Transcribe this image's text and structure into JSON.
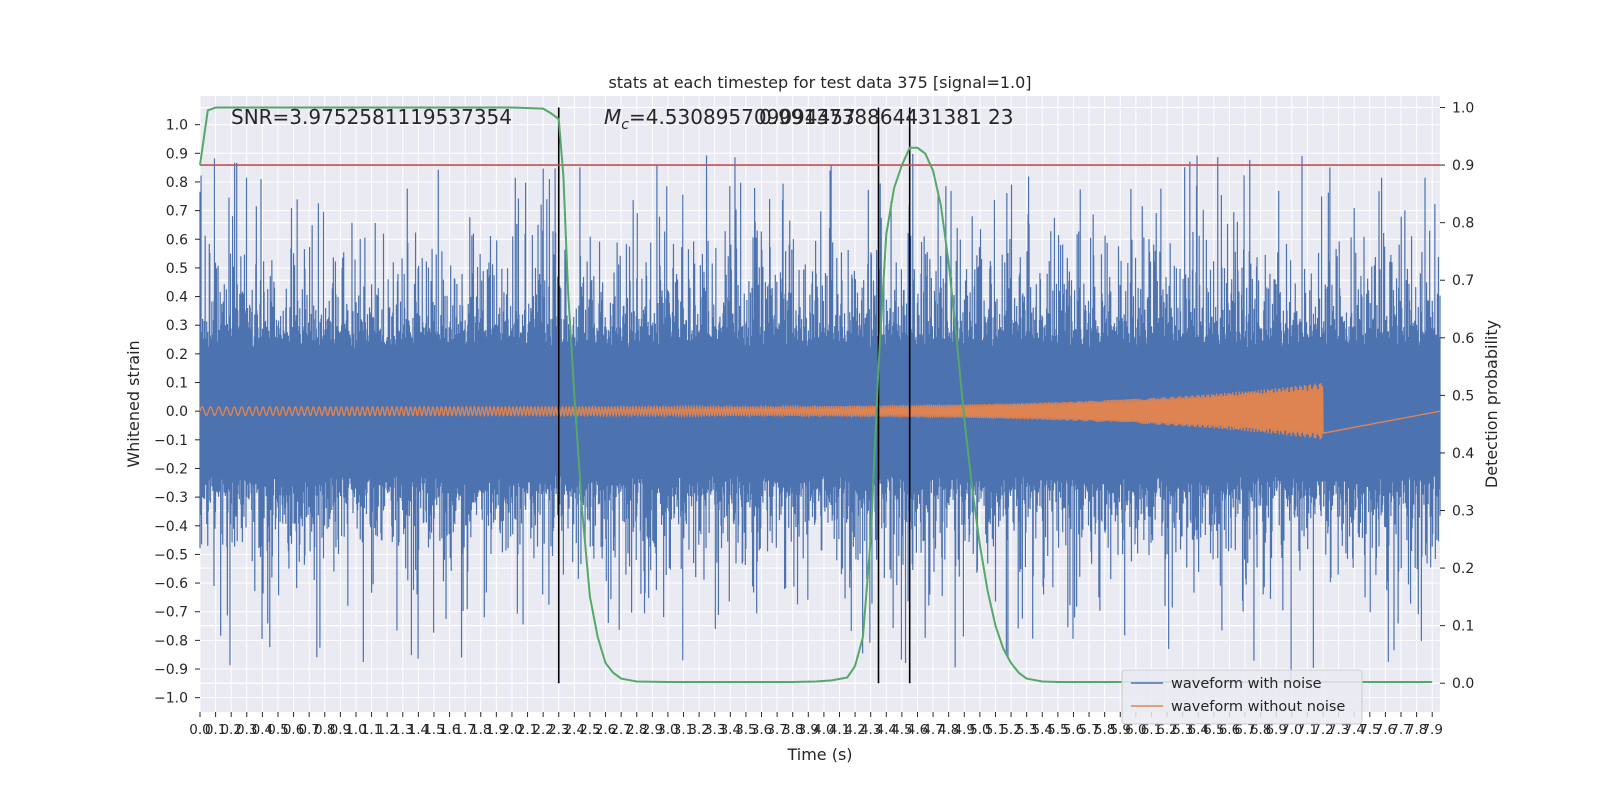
{
  "chart_data": {
    "type": "line",
    "title": "stats at each timestep for test data 375 [signal=1.0]",
    "xlabel": "Time (s)",
    "ylabel": "Whitened strain",
    "ylabel_right": "Detection probability",
    "xlim": [
      0.0,
      7.95
    ],
    "ylim": [
      -1.05,
      1.1
    ],
    "ylim_right": [
      -0.05,
      1.02
    ],
    "xticks": [
      0.0,
      0.1,
      0.2,
      0.3,
      0.4,
      0.5,
      0.6,
      0.7,
      0.8,
      0.9,
      1.0,
      1.1,
      1.2,
      1.3,
      1.4,
      1.5,
      1.6,
      1.7,
      1.8,
      1.9,
      2.0,
      2.1,
      2.2,
      2.3,
      2.4,
      2.5,
      2.6,
      2.7,
      2.8,
      2.9,
      3.0,
      3.1,
      3.2,
      3.3,
      3.4,
      3.5,
      3.6,
      3.7,
      3.8,
      3.9,
      4.0,
      4.1,
      4.2,
      4.3,
      4.4,
      4.5,
      4.6,
      4.7,
      4.8,
      4.9,
      5.0,
      5.1,
      5.2,
      5.3,
      5.4,
      5.5,
      5.6,
      5.7,
      5.8,
      5.9,
      6.0,
      6.1,
      6.2,
      6.3,
      6.4,
      6.5,
      6.6,
      6.7,
      6.8,
      6.9,
      7.0,
      7.1,
      7.2,
      7.3,
      7.4,
      7.5,
      7.6,
      7.7,
      7.8,
      7.9
    ],
    "xtick_labels": [
      "0.0",
      "0.1",
      "0.2",
      "0.3",
      "0.4",
      "0.5",
      "0.6",
      "0.7",
      "0.8",
      "0.9",
      "1.0",
      "1.1",
      "1.2",
      "1.3",
      "1.4",
      "1.5",
      "1.6",
      "1.7",
      "1.8",
      "1.9",
      "2.0",
      "2.1",
      "2.2",
      "2.3",
      "2.4",
      "2.5",
      "2.6",
      "2.7",
      "2.8",
      "2.9",
      "3.0",
      "3.1",
      "3.2",
      "3.3",
      "3.4",
      "3.5",
      "3.6",
      "3.7",
      "3.8",
      "3.9",
      "4.0",
      "4.1",
      "4.2",
      "4.3",
      "4.4",
      "4.5",
      "4.6",
      "4.7",
      "4.8",
      "4.9",
      "5.0",
      "5.1",
      "5.2",
      "5.3",
      "5.4",
      "5.5",
      "5.6",
      "5.7",
      "5.8",
      "5.9",
      "6.0",
      "6.1",
      "6.2",
      "6.3",
      "6.4",
      "6.5",
      "6.6",
      "6.7",
      "6.8",
      "6.9",
      "7.0",
      "7.1",
      "7.2",
      "7.3",
      "7.4",
      "7.5",
      "7.6",
      "7.7",
      "7.8",
      "7.9"
    ],
    "yticks": [
      -1.0,
      -0.9,
      -0.8,
      -0.7,
      -0.6,
      -0.5,
      -0.4,
      -0.3,
      -0.2,
      -0.1,
      0.0,
      0.1,
      0.2,
      0.3,
      0.4,
      0.5,
      0.6,
      0.7,
      0.8,
      0.9,
      1.0
    ],
    "ytick_labels": [
      "−1.0",
      "−0.9",
      "−0.8",
      "−0.7",
      "−0.6",
      "−0.5",
      "−0.4",
      "−0.3",
      "−0.2",
      "−0.1",
      "0.0",
      "0.1",
      "0.2",
      "0.3",
      "0.4",
      "0.5",
      "0.6",
      "0.7",
      "0.8",
      "0.9",
      "1.0"
    ],
    "yticks_right": [
      0.0,
      0.1,
      0.2,
      0.3,
      0.4,
      0.5,
      0.6,
      0.7,
      0.8,
      0.9,
      1.0
    ],
    "ytick_labels_right": [
      "0.0",
      "0.1",
      "0.2",
      "0.3",
      "0.4",
      "0.5",
      "0.6",
      "0.7",
      "0.8",
      "0.9",
      "1.0"
    ],
    "series": [
      {
        "name": "waveform with noise",
        "color": "#4c72b0",
        "kind": "dense noise",
        "core_amplitude": 0.22,
        "peak_amplitude": 0.9
      },
      {
        "name": "waveform without noise",
        "color": "#dd8452",
        "kind": "chirp",
        "t_start": 0.0,
        "t_merger": 7.2,
        "start_amplitude": 0.015,
        "merger_amplitude": 0.1
      },
      {
        "name": "detection probability",
        "color": "#55a868",
        "axis": "right",
        "x": [
          0.0,
          0.05,
          0.1,
          0.2,
          0.5,
          1.0,
          1.5,
          2.0,
          2.2,
          2.25,
          2.3,
          2.33,
          2.36,
          2.4,
          2.45,
          2.5,
          2.55,
          2.6,
          2.65,
          2.7,
          2.8,
          3.0,
          3.5,
          3.8,
          3.95,
          4.05,
          4.15,
          4.2,
          4.25,
          4.3,
          4.35,
          4.4,
          4.45,
          4.5,
          4.55,
          4.6,
          4.65,
          4.7,
          4.75,
          4.8,
          4.85,
          4.9,
          4.95,
          5.0,
          5.05,
          5.1,
          5.15,
          5.2,
          5.25,
          5.3,
          5.4,
          5.5,
          6.0,
          7.0,
          7.9
        ],
        "y": [
          0.9,
          0.995,
          1.0,
          1.0,
          1.0,
          1.0,
          1.0,
          1.0,
          0.998,
          0.99,
          0.98,
          0.88,
          0.68,
          0.5,
          0.3,
          0.15,
          0.08,
          0.035,
          0.018,
          0.008,
          0.003,
          0.002,
          0.002,
          0.002,
          0.003,
          0.005,
          0.01,
          0.03,
          0.08,
          0.25,
          0.55,
          0.78,
          0.86,
          0.9,
          0.93,
          0.93,
          0.92,
          0.89,
          0.83,
          0.73,
          0.6,
          0.46,
          0.34,
          0.24,
          0.16,
          0.1,
          0.06,
          0.035,
          0.018,
          0.008,
          0.003,
          0.002,
          0.002,
          0.002,
          0.002
        ]
      }
    ],
    "threshold": {
      "axis": "right",
      "value": 0.9,
      "color": "#c44e52"
    },
    "vertical_lines": [
      2.3,
      4.35,
      4.55
    ],
    "annotations": {
      "snr": "SNR=3.9752581119537354",
      "mc_symbol": "M",
      "mc_subscript": "c",
      "mc_value": "=4.530895709094457",
      "overlap": "0.9913738864431381 23"
    },
    "legend": {
      "placement": "lower-right",
      "entries": [
        "waveform with noise",
        "waveform without noise"
      ]
    },
    "grid": true
  }
}
